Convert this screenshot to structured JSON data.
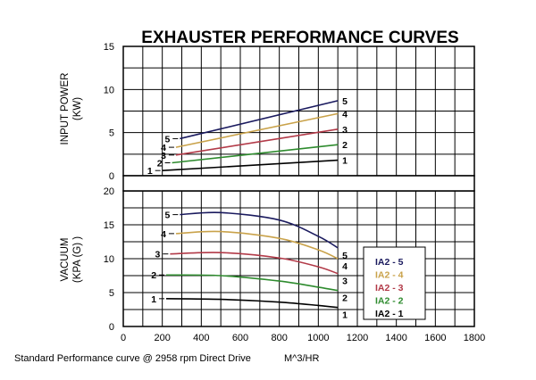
{
  "colors": {
    "1": "#000000",
    "2": "#2e8b2e",
    "3": "#b23a48",
    "4": "#c9a24a",
    "5": "#1a1a5e",
    "grid": "#000000"
  },
  "chart_data": [
    {
      "type": "line",
      "panel": "power",
      "title": "EXHAUSTER PERFORMANCE CURVES",
      "xlabel": "",
      "ylabel": "INPUT POWER (KW)",
      "ylabel_lines": [
        "INPUT POWER",
        "(KW)"
      ],
      "xlim": [
        0,
        1800
      ],
      "ylim": [
        0,
        15
      ],
      "yticks": [
        0,
        5,
        10,
        15
      ],
      "grid": true,
      "series": [
        {
          "name": "1",
          "x": [
            200,
            1100
          ],
          "y": [
            0.6,
            1.8
          ]
        },
        {
          "name": "2",
          "x": [
            250,
            1100
          ],
          "y": [
            1.5,
            3.6
          ]
        },
        {
          "name": "3",
          "x": [
            270,
            1100
          ],
          "y": [
            2.4,
            5.4
          ]
        },
        {
          "name": "4",
          "x": [
            270,
            1100
          ],
          "y": [
            3.3,
            7.2
          ]
        },
        {
          "name": "5",
          "x": [
            290,
            1100
          ],
          "y": [
            4.3,
            8.7
          ]
        }
      ]
    },
    {
      "type": "line",
      "panel": "vacuum",
      "xlabel": "M^3/HR",
      "ylabel": "VACUUM (KPA (G))",
      "ylabel_lines": [
        "VACUUM",
        "(KPA (G) )"
      ],
      "xlim": [
        0,
        1800
      ],
      "ylim": [
        0,
        20
      ],
      "xticks": [
        0,
        200,
        400,
        600,
        800,
        1000,
        1200,
        1400,
        1600,
        1800
      ],
      "yticks": [
        0,
        5,
        10,
        15,
        20
      ],
      "grid": true,
      "legend_position": "right",
      "series": [
        {
          "name": "IA2 - 1",
          "label": "1",
          "x": [
            220,
            500,
            800,
            1000,
            1100
          ],
          "y": [
            4.1,
            4.0,
            3.6,
            3.1,
            2.8
          ]
        },
        {
          "name": "IA2 - 2",
          "label": "2",
          "x": [
            220,
            500,
            800,
            1000,
            1100
          ],
          "y": [
            7.6,
            7.5,
            6.7,
            5.8,
            5.3
          ]
        },
        {
          "name": "IA2 - 3",
          "label": "3",
          "x": [
            240,
            500,
            800,
            1000,
            1100
          ],
          "y": [
            10.7,
            10.9,
            10.1,
            8.8,
            7.8
          ]
        },
        {
          "name": "IA2 - 4",
          "label": "4",
          "x": [
            270,
            500,
            800,
            1000,
            1100
          ],
          "y": [
            13.7,
            14.0,
            13.0,
            11.3,
            10.0
          ]
        },
        {
          "name": "IA2 - 5",
          "label": "5",
          "x": [
            290,
            500,
            800,
            1000,
            1100
          ],
          "y": [
            16.5,
            16.8,
            15.7,
            13.3,
            11.6
          ]
        }
      ]
    }
  ],
  "footer": {
    "note": "Standard Performance curve @ 2958 rpm Direct Drive"
  }
}
